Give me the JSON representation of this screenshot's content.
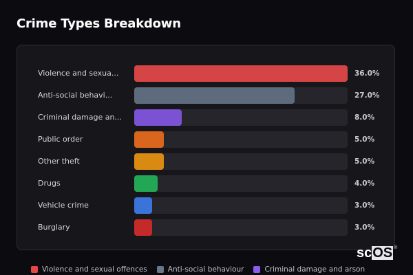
{
  "header": {
    "title": "Crime Types Breakdown"
  },
  "rows": [
    {
      "label": "Violence and sexua...",
      "value": "36.0%",
      "pct": 36.0,
      "color": "#d64545"
    },
    {
      "label": "Anti-social behavi...",
      "value": "27.0%",
      "pct": 27.0,
      "color": "#5e6b7d"
    },
    {
      "label": "Criminal damage an...",
      "value": "8.0%",
      "pct": 8.0,
      "color": "#7b52d4"
    },
    {
      "label": "Public order",
      "value": "5.0%",
      "pct": 5.0,
      "color": "#d9661c"
    },
    {
      "label": "Other theft",
      "value": "5.0%",
      "pct": 5.0,
      "color": "#d98a13"
    },
    {
      "label": "Drugs",
      "value": "4.0%",
      "pct": 4.0,
      "color": "#22a855"
    },
    {
      "label": "Vehicle crime",
      "value": "3.0%",
      "pct": 3.0,
      "color": "#3a74d8"
    },
    {
      "label": "Burglary",
      "value": "3.0%",
      "pct": 3.0,
      "color": "#c42a2a"
    }
  ],
  "legend": [
    {
      "label": "Violence and sexual offences",
      "color": "#e84545"
    },
    {
      "label": "Anti-social behaviour",
      "color": "#6b7688"
    },
    {
      "label": "Criminal damage and arson",
      "color": "#8a5cf0"
    }
  ],
  "logo": {
    "left": "sc",
    "highlight": "OS",
    "mark": "®"
  },
  "chart_data": {
    "type": "bar",
    "orientation": "horizontal",
    "title": "Crime Types Breakdown",
    "categories": [
      "Violence and sexual offences",
      "Anti-social behaviour",
      "Criminal damage and arson",
      "Public order",
      "Other theft",
      "Drugs",
      "Vehicle crime",
      "Burglary"
    ],
    "display_labels": [
      "Violence and sexua...",
      "Anti-social behavi...",
      "Criminal damage an...",
      "Public order",
      "Other theft",
      "Drugs",
      "Vehicle crime",
      "Burglary"
    ],
    "values": [
      36.0,
      27.0,
      8.0,
      5.0,
      5.0,
      4.0,
      3.0,
      3.0
    ],
    "value_labels": [
      "36.0%",
      "27.0%",
      "8.0%",
      "5.0%",
      "5.0%",
      "4.0%",
      "3.0%",
      "3.0%"
    ],
    "colors": [
      "#d64545",
      "#5e6b7d",
      "#7b52d4",
      "#d9661c",
      "#d98a13",
      "#22a855",
      "#3a74d8",
      "#c42a2a"
    ],
    "unit": "%",
    "scale_max": 36.0,
    "xlabel": "",
    "ylabel": "",
    "grid": false,
    "legend": {
      "position": "bottom",
      "entries": [
        "Violence and sexual offences",
        "Anti-social behaviour",
        "Criminal damage and arson"
      ]
    }
  }
}
